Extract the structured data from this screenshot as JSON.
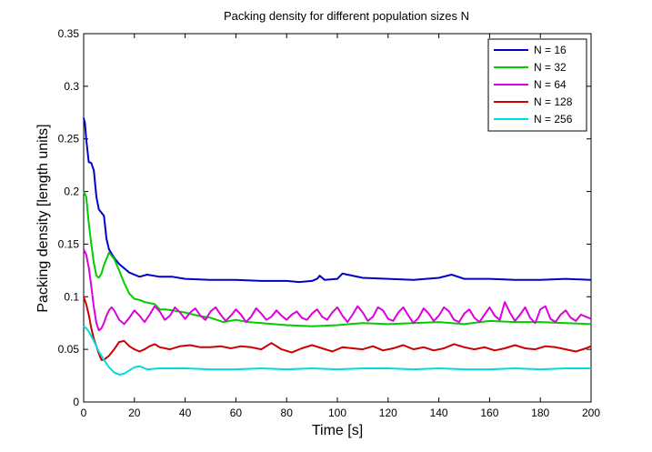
{
  "chart_data": {
    "type": "line",
    "title": "Packing density for different population sizes N",
    "xlabel": "Time [s]",
    "ylabel": "Packing density [length units]",
    "xlim": [
      0,
      200
    ],
    "ylim": [
      0,
      0.35
    ],
    "xticks": [
      0,
      20,
      40,
      60,
      80,
      100,
      120,
      140,
      160,
      180,
      200
    ],
    "yticks": [
      0,
      0.05,
      0.1,
      0.15,
      0.2,
      0.25,
      0.3,
      0.35
    ],
    "xtick_labels": [
      "0",
      "20",
      "40",
      "60",
      "80",
      "100",
      "120",
      "140",
      "160",
      "180",
      "200"
    ],
    "ytick_labels": [
      "0",
      "0.05",
      "0.1",
      "0.15",
      "0.2",
      "0.25",
      "0.3",
      "0.35"
    ],
    "grid": false,
    "legend_position": "top-right",
    "series": [
      {
        "name": "N = 16",
        "color": "#0000cc",
        "x": [
          0,
          0.5,
          1,
          2,
          3,
          4,
          5,
          6,
          7,
          8,
          9,
          10,
          12,
          14,
          16,
          18,
          20,
          22,
          25,
          30,
          35,
          40,
          50,
          60,
          70,
          80,
          85,
          90,
          92,
          93,
          95,
          100,
          102,
          104,
          106,
          110,
          120,
          130,
          140,
          145,
          150,
          160,
          170,
          180,
          190,
          200
        ],
        "y": [
          0.27,
          0.265,
          0.25,
          0.228,
          0.227,
          0.22,
          0.195,
          0.183,
          0.18,
          0.177,
          0.155,
          0.145,
          0.137,
          0.131,
          0.127,
          0.123,
          0.121,
          0.119,
          0.121,
          0.119,
          0.119,
          0.117,
          0.116,
          0.116,
          0.115,
          0.115,
          0.114,
          0.115,
          0.117,
          0.12,
          0.116,
          0.117,
          0.122,
          0.121,
          0.12,
          0.118,
          0.117,
          0.116,
          0.118,
          0.121,
          0.117,
          0.117,
          0.116,
          0.116,
          0.117,
          0.116
        ]
      },
      {
        "name": "N = 32",
        "color": "#00cc00",
        "x": [
          0,
          1,
          2,
          3,
          4,
          5,
          6,
          7,
          8,
          10,
          12,
          14,
          16,
          18,
          20,
          22,
          24,
          26,
          28,
          30,
          32,
          35,
          40,
          45,
          50,
          55,
          60,
          65,
          70,
          80,
          90,
          100,
          110,
          120,
          130,
          140,
          150,
          160,
          170,
          180,
          190,
          200
        ],
        "y": [
          0.2,
          0.195,
          0.17,
          0.15,
          0.132,
          0.12,
          0.118,
          0.122,
          0.13,
          0.142,
          0.136,
          0.125,
          0.113,
          0.103,
          0.098,
          0.097,
          0.095,
          0.094,
          0.093,
          0.088,
          0.088,
          0.087,
          0.085,
          0.082,
          0.08,
          0.076,
          0.078,
          0.076,
          0.075,
          0.073,
          0.072,
          0.073,
          0.075,
          0.074,
          0.075,
          0.076,
          0.074,
          0.077,
          0.076,
          0.076,
          0.075,
          0.074
        ]
      },
      {
        "name": "N = 64",
        "color": "#dd00dd",
        "x": [
          0,
          1,
          2,
          3,
          4,
          5,
          6,
          7,
          8,
          9,
          10,
          11,
          12,
          14,
          16,
          18,
          20,
          22,
          24,
          26,
          28,
          30,
          32,
          34,
          36,
          38,
          40,
          42,
          44,
          46,
          48,
          50,
          52,
          54,
          56,
          58,
          60,
          62,
          64,
          66,
          68,
          70,
          72,
          74,
          76,
          78,
          80,
          82,
          84,
          86,
          88,
          90,
          92,
          94,
          96,
          98,
          100,
          102,
          104,
          106,
          108,
          110,
          112,
          114,
          116,
          118,
          120,
          122,
          124,
          126,
          128,
          130,
          132,
          134,
          136,
          138,
          140,
          142,
          144,
          146,
          148,
          150,
          152,
          154,
          156,
          158,
          160,
          162,
          164,
          166,
          168,
          170,
          172,
          174,
          176,
          178,
          180,
          182,
          184,
          186,
          188,
          190,
          192,
          194,
          196,
          198,
          200
        ],
        "y": [
          0.145,
          0.14,
          0.128,
          0.11,
          0.09,
          0.075,
          0.068,
          0.07,
          0.075,
          0.082,
          0.087,
          0.09,
          0.087,
          0.078,
          0.074,
          0.08,
          0.087,
          0.082,
          0.076,
          0.083,
          0.091,
          0.086,
          0.078,
          0.082,
          0.09,
          0.085,
          0.079,
          0.085,
          0.089,
          0.082,
          0.078,
          0.086,
          0.09,
          0.083,
          0.077,
          0.082,
          0.088,
          0.083,
          0.076,
          0.081,
          0.089,
          0.084,
          0.078,
          0.081,
          0.087,
          0.082,
          0.078,
          0.083,
          0.086,
          0.08,
          0.078,
          0.084,
          0.088,
          0.081,
          0.078,
          0.085,
          0.09,
          0.082,
          0.076,
          0.083,
          0.091,
          0.085,
          0.077,
          0.081,
          0.09,
          0.087,
          0.079,
          0.077,
          0.085,
          0.09,
          0.082,
          0.075,
          0.08,
          0.089,
          0.084,
          0.077,
          0.082,
          0.09,
          0.086,
          0.078,
          0.076,
          0.084,
          0.088,
          0.08,
          0.076,
          0.083,
          0.09,
          0.082,
          0.078,
          0.095,
          0.085,
          0.077,
          0.083,
          0.09,
          0.08,
          0.075,
          0.088,
          0.091,
          0.079,
          0.076,
          0.083,
          0.087,
          0.08,
          0.077,
          0.083,
          0.081,
          0.079
        ]
      },
      {
        "name": "N = 128",
        "color": "#cc0000",
        "x": [
          0,
          1,
          2,
          3,
          4,
          5,
          6,
          7,
          8,
          9,
          10,
          12,
          14,
          16,
          18,
          20,
          22,
          24,
          26,
          28,
          30,
          34,
          38,
          42,
          46,
          50,
          54,
          58,
          62,
          66,
          70,
          74,
          78,
          82,
          86,
          90,
          94,
          98,
          102,
          106,
          110,
          114,
          118,
          122,
          126,
          130,
          134,
          138,
          142,
          146,
          150,
          154,
          158,
          162,
          166,
          170,
          174,
          178,
          182,
          186,
          190,
          194,
          198,
          200
        ],
        "y": [
          0.1,
          0.093,
          0.083,
          0.07,
          0.06,
          0.053,
          0.046,
          0.04,
          0.04,
          0.042,
          0.044,
          0.05,
          0.057,
          0.058,
          0.053,
          0.05,
          0.048,
          0.05,
          0.053,
          0.055,
          0.052,
          0.05,
          0.053,
          0.054,
          0.052,
          0.052,
          0.053,
          0.051,
          0.053,
          0.052,
          0.05,
          0.056,
          0.05,
          0.047,
          0.051,
          0.054,
          0.051,
          0.048,
          0.052,
          0.051,
          0.05,
          0.053,
          0.049,
          0.051,
          0.054,
          0.05,
          0.052,
          0.049,
          0.051,
          0.055,
          0.052,
          0.05,
          0.052,
          0.049,
          0.051,
          0.054,
          0.051,
          0.05,
          0.053,
          0.052,
          0.05,
          0.048,
          0.051,
          0.053
        ]
      },
      {
        "name": "N = 256",
        "color": "#00dddd",
        "x": [
          0,
          1,
          2,
          4,
          6,
          8,
          10,
          12,
          14,
          16,
          18,
          20,
          22,
          25,
          30,
          35,
          40,
          50,
          60,
          70,
          80,
          90,
          100,
          110,
          120,
          130,
          140,
          150,
          160,
          170,
          180,
          190,
          200
        ],
        "y": [
          0.072,
          0.07,
          0.067,
          0.058,
          0.048,
          0.04,
          0.033,
          0.028,
          0.026,
          0.027,
          0.03,
          0.033,
          0.034,
          0.031,
          0.032,
          0.032,
          0.032,
          0.031,
          0.031,
          0.032,
          0.031,
          0.032,
          0.031,
          0.032,
          0.032,
          0.031,
          0.032,
          0.031,
          0.031,
          0.032,
          0.031,
          0.032,
          0.032
        ]
      }
    ]
  }
}
